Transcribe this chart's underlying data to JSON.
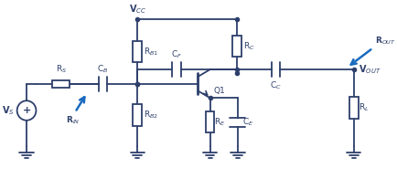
{
  "bg_color": "#ffffff",
  "line_color": "#2d3f6b",
  "blue_color": "#1a6bbf",
  "figsize": [
    4.35,
    1.96
  ],
  "dpi": 100,
  "labels": {
    "Vs": "V$_S$",
    "Rs": "R$_S$",
    "CB": "C$_B$",
    "RIN": "R$_{IN}$",
    "VCC": "V$_{CC}$",
    "RB1": "R$_{B1}$",
    "RB2": "R$_{B2}$",
    "CF": "C$_F$",
    "RC": "R$_C$",
    "Q1": "Q1",
    "RE": "R$_E$",
    "CE": "C$_E$",
    "CC": "C$_C$",
    "RL": "R$_L$",
    "VOUT": "V$_{OUT}$",
    "ROUT": "R$_{OUT}$"
  }
}
